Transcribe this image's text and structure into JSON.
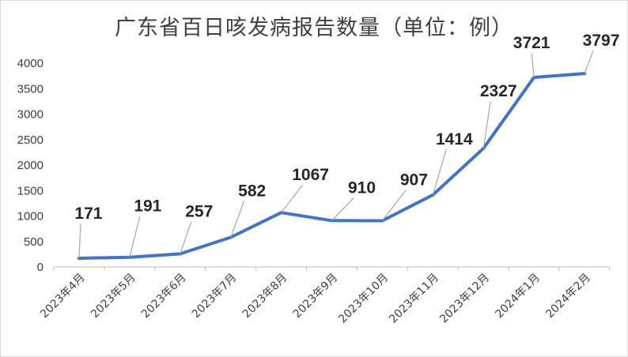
{
  "chart_data": {
    "type": "line",
    "title": "广东省百日咳发病报告数量（单位：例）",
    "xlabel": "",
    "ylabel": "",
    "categories": [
      "2023年4月",
      "2023年5月",
      "2023年6月",
      "2023年7月",
      "2023年8月",
      "2023年9月",
      "2023年10月",
      "2023年11月",
      "2023年12月",
      "2024年1月",
      "2024年2月"
    ],
    "series": [
      {
        "values": [
          171,
          191,
          257,
          582,
          1067,
          910,
          907,
          1414,
          2327,
          3721,
          3797
        ],
        "color": "#4472C4"
      }
    ],
    "yticks": [
      0,
      500,
      1000,
      1500,
      2000,
      2500,
      3000,
      3500,
      4000
    ],
    "ylim": [
      0,
      4000
    ],
    "grid": false,
    "legend": "none",
    "data_labels": true
  }
}
